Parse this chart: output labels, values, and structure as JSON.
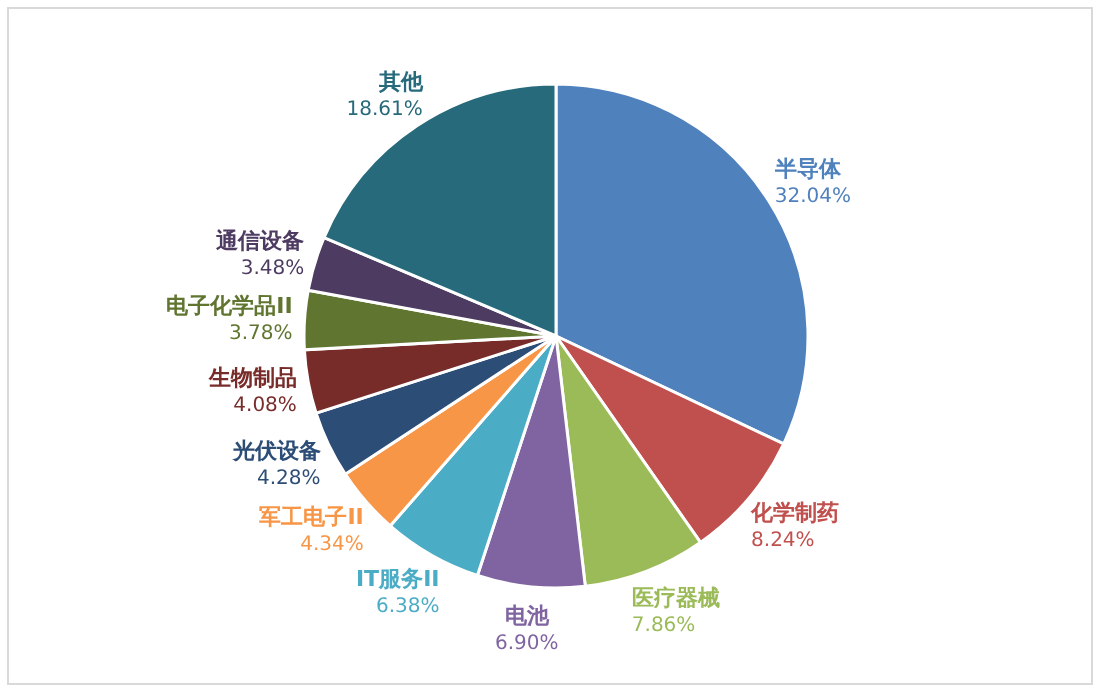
{
  "chart_data": {
    "type": "pie",
    "categories": [
      "半导体",
      "化学制药",
      "医疗器械",
      "电池",
      "IT服务II",
      "军工电子II",
      "光伏设备",
      "生物制品",
      "电子化学品II",
      "通信设备",
      "其他"
    ],
    "values": [
      32.04,
      8.24,
      7.86,
      6.9,
      6.38,
      4.34,
      4.28,
      4.08,
      3.78,
      3.48,
      18.61
    ],
    "colors": [
      "#4f81bd",
      "#c0504d",
      "#9bbb59",
      "#8064a2",
      "#4bacc6",
      "#f79646",
      "#2c4d75",
      "#772c2a",
      "#5f7530",
      "#4d3b62",
      "#276a7c"
    ],
    "value_labels": [
      "32.04%",
      "8.24%",
      "7.86%",
      "6.90%",
      "6.38%",
      "4.34%",
      "4.28%",
      "4.08%",
      "3.78%",
      "3.48%",
      "18.61%"
    ]
  }
}
